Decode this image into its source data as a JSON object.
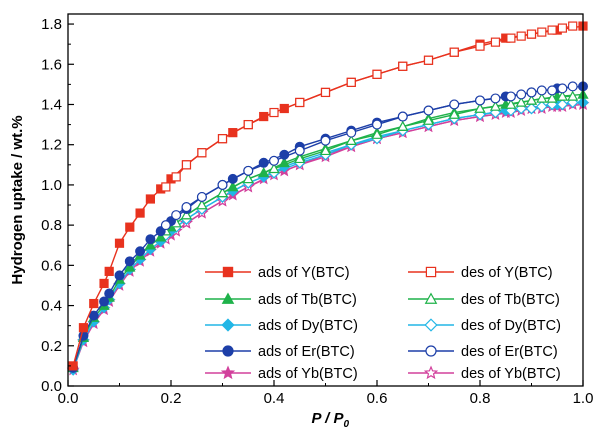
{
  "chart_data": {
    "type": "line",
    "title": "",
    "xlabel": "P / P",
    "xlabel_subscript": "0",
    "ylabel": "Hydrogen uptake / wt.%",
    "xlim": [
      0.0,
      1.0
    ],
    "ylim": [
      0.0,
      1.85
    ],
    "x_ticks": [
      "0.0",
      "0.2",
      "0.4",
      "0.6",
      "0.8",
      "1.0"
    ],
    "y_ticks": [
      "0.0",
      "0.2",
      "0.4",
      "0.6",
      "0.8",
      "1.0",
      "1.2",
      "1.4",
      "1.6",
      "1.8"
    ],
    "grid": false,
    "legend_position": "bottom-right",
    "series": [
      {
        "name": "ads of Y(BTC)",
        "color": "#e8321e",
        "marker": "square",
        "filled": true,
        "x": [
          0.01,
          0.03,
          0.05,
          0.07,
          0.08,
          0.1,
          0.12,
          0.14,
          0.16,
          0.18,
          0.2,
          0.23,
          0.26,
          0.3,
          0.32,
          0.35,
          0.38,
          0.42,
          0.45,
          0.5,
          0.55,
          0.6,
          0.65,
          0.7,
          0.75,
          0.8,
          0.85,
          0.9,
          0.95,
          1.0
        ],
        "values": [
          0.1,
          0.29,
          0.41,
          0.51,
          0.57,
          0.71,
          0.79,
          0.86,
          0.93,
          0.98,
          1.03,
          1.1,
          1.16,
          1.23,
          1.26,
          1.3,
          1.34,
          1.38,
          1.41,
          1.46,
          1.51,
          1.55,
          1.59,
          1.62,
          1.66,
          1.7,
          1.73,
          1.75,
          1.77,
          1.79
        ]
      },
      {
        "name": "des of Y(BTC)",
        "color": "#e8321e",
        "marker": "square",
        "filled": false,
        "x": [
          0.19,
          0.21,
          0.23,
          0.26,
          0.3,
          0.35,
          0.4,
          0.45,
          0.5,
          0.55,
          0.6,
          0.65,
          0.7,
          0.75,
          0.8,
          0.83,
          0.86,
          0.88,
          0.9,
          0.92,
          0.94,
          0.96,
          0.98
        ],
        "values": [
          0.99,
          1.04,
          1.1,
          1.16,
          1.23,
          1.3,
          1.36,
          1.41,
          1.46,
          1.51,
          1.55,
          1.59,
          1.62,
          1.66,
          1.69,
          1.71,
          1.73,
          1.74,
          1.75,
          1.76,
          1.77,
          1.78,
          1.79
        ]
      },
      {
        "name": "ads of Tb(BTC)",
        "color": "#1fb24a",
        "marker": "triangle",
        "filled": true,
        "x": [
          0.01,
          0.03,
          0.05,
          0.07,
          0.08,
          0.1,
          0.12,
          0.14,
          0.16,
          0.18,
          0.2,
          0.23,
          0.26,
          0.3,
          0.32,
          0.35,
          0.38,
          0.42,
          0.45,
          0.5,
          0.55,
          0.6,
          0.65,
          0.7,
          0.75,
          0.8,
          0.85,
          0.9,
          0.95,
          1.0
        ],
        "values": [
          0.09,
          0.24,
          0.34,
          0.4,
          0.44,
          0.53,
          0.59,
          0.65,
          0.7,
          0.74,
          0.79,
          0.85,
          0.9,
          0.96,
          0.99,
          1.03,
          1.06,
          1.11,
          1.14,
          1.18,
          1.22,
          1.26,
          1.29,
          1.33,
          1.36,
          1.38,
          1.4,
          1.42,
          1.44,
          1.45
        ]
      },
      {
        "name": "des of Tb(BTC)",
        "color": "#1fb24a",
        "marker": "triangle",
        "filled": false,
        "x": [
          0.19,
          0.21,
          0.23,
          0.26,
          0.3,
          0.35,
          0.4,
          0.45,
          0.5,
          0.55,
          0.6,
          0.65,
          0.7,
          0.75,
          0.8,
          0.83,
          0.86,
          0.88,
          0.9,
          0.92,
          0.94,
          0.96,
          0.98
        ],
        "values": [
          0.77,
          0.81,
          0.85,
          0.9,
          0.96,
          1.03,
          1.08,
          1.13,
          1.17,
          1.22,
          1.25,
          1.29,
          1.32,
          1.35,
          1.38,
          1.39,
          1.4,
          1.41,
          1.42,
          1.43,
          1.43,
          1.44,
          1.44
        ]
      },
      {
        "name": "ads of Dy(BTC)",
        "color": "#22b6e6",
        "marker": "diamond",
        "filled": true,
        "x": [
          0.01,
          0.03,
          0.05,
          0.07,
          0.08,
          0.1,
          0.12,
          0.14,
          0.16,
          0.18,
          0.2,
          0.23,
          0.26,
          0.3,
          0.32,
          0.35,
          0.38,
          0.42,
          0.45,
          0.5,
          0.55,
          0.6,
          0.65,
          0.7,
          0.75,
          0.8,
          0.85,
          0.9,
          0.95,
          1.0
        ],
        "values": [
          0.08,
          0.23,
          0.32,
          0.39,
          0.43,
          0.51,
          0.58,
          0.63,
          0.68,
          0.72,
          0.77,
          0.83,
          0.88,
          0.94,
          0.97,
          1.01,
          1.04,
          1.09,
          1.12,
          1.16,
          1.2,
          1.24,
          1.27,
          1.3,
          1.33,
          1.35,
          1.37,
          1.38,
          1.4,
          1.41
        ]
      },
      {
        "name": "des of Dy(BTC)",
        "color": "#22b6e6",
        "marker": "diamond",
        "filled": false,
        "x": [
          0.19,
          0.21,
          0.23,
          0.26,
          0.3,
          0.35,
          0.4,
          0.45,
          0.5,
          0.55,
          0.6,
          0.65,
          0.7,
          0.75,
          0.8,
          0.83,
          0.86,
          0.88,
          0.9,
          0.92,
          0.94,
          0.96,
          0.98
        ],
        "values": [
          0.75,
          0.79,
          0.83,
          0.88,
          0.94,
          1.01,
          1.06,
          1.11,
          1.15,
          1.2,
          1.23,
          1.27,
          1.3,
          1.33,
          1.35,
          1.36,
          1.37,
          1.38,
          1.38,
          1.39,
          1.4,
          1.4,
          1.41
        ]
      },
      {
        "name": "ads of Er(BTC)",
        "color": "#1d3fa8",
        "marker": "circle",
        "filled": true,
        "x": [
          0.01,
          0.03,
          0.05,
          0.07,
          0.08,
          0.1,
          0.12,
          0.14,
          0.16,
          0.18,
          0.2,
          0.23,
          0.26,
          0.3,
          0.32,
          0.35,
          0.38,
          0.42,
          0.45,
          0.5,
          0.55,
          0.6,
          0.65,
          0.7,
          0.75,
          0.8,
          0.85,
          0.9,
          0.95,
          1.0
        ],
        "values": [
          0.09,
          0.25,
          0.35,
          0.42,
          0.46,
          0.55,
          0.62,
          0.67,
          0.73,
          0.77,
          0.82,
          0.88,
          0.94,
          1.0,
          1.03,
          1.07,
          1.11,
          1.15,
          1.19,
          1.23,
          1.27,
          1.31,
          1.34,
          1.37,
          1.4,
          1.42,
          1.44,
          1.46,
          1.48,
          1.49
        ]
      },
      {
        "name": "des of Er(BTC)",
        "color": "#1d3fa8",
        "marker": "circle",
        "filled": false,
        "x": [
          0.19,
          0.21,
          0.23,
          0.26,
          0.3,
          0.35,
          0.4,
          0.45,
          0.5,
          0.55,
          0.6,
          0.65,
          0.7,
          0.75,
          0.8,
          0.83,
          0.86,
          0.88,
          0.9,
          0.92,
          0.94,
          0.96,
          0.98
        ],
        "values": [
          0.8,
          0.85,
          0.89,
          0.94,
          1.0,
          1.07,
          1.12,
          1.17,
          1.22,
          1.26,
          1.3,
          1.34,
          1.37,
          1.4,
          1.42,
          1.43,
          1.44,
          1.45,
          1.46,
          1.47,
          1.47,
          1.48,
          1.49
        ]
      },
      {
        "name": "ads of Yb(BTC)",
        "color": "#d2409c",
        "marker": "star",
        "filled": true,
        "x": [
          0.01,
          0.03,
          0.05,
          0.07,
          0.08,
          0.1,
          0.12,
          0.14,
          0.16,
          0.18,
          0.2,
          0.23,
          0.26,
          0.3,
          0.32,
          0.35,
          0.38,
          0.42,
          0.45,
          0.5,
          0.55,
          0.6,
          0.65,
          0.7,
          0.75,
          0.8,
          0.85,
          0.9,
          0.95,
          1.0
        ],
        "values": [
          0.08,
          0.22,
          0.31,
          0.38,
          0.42,
          0.5,
          0.57,
          0.62,
          0.67,
          0.71,
          0.75,
          0.81,
          0.86,
          0.92,
          0.95,
          0.99,
          1.03,
          1.07,
          1.1,
          1.15,
          1.19,
          1.23,
          1.26,
          1.29,
          1.32,
          1.34,
          1.36,
          1.38,
          1.39,
          1.4
        ]
      },
      {
        "name": "des of Yb(BTC)",
        "color": "#d2409c",
        "marker": "star",
        "filled": false,
        "x": [
          0.19,
          0.21,
          0.23,
          0.26,
          0.3,
          0.35,
          0.4,
          0.45,
          0.5,
          0.55,
          0.6,
          0.65,
          0.7,
          0.75,
          0.8,
          0.83,
          0.86,
          0.88,
          0.9,
          0.92,
          0.94,
          0.96,
          0.98
        ],
        "values": [
          0.73,
          0.77,
          0.81,
          0.86,
          0.92,
          0.99,
          1.05,
          1.1,
          1.14,
          1.19,
          1.23,
          1.26,
          1.29,
          1.32,
          1.34,
          1.35,
          1.36,
          1.37,
          1.38,
          1.38,
          1.39,
          1.39,
          1.4
        ]
      }
    ]
  }
}
